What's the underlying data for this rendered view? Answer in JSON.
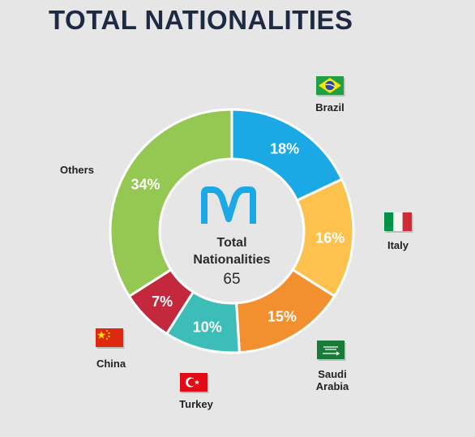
{
  "title": "TOTAL NATIONALITIES",
  "center": {
    "line1": "Total",
    "line2": "Nationalities",
    "value": "65"
  },
  "colors": {
    "brazil": "#1ba9e6",
    "italy": "#fdc24e",
    "saudi": "#f2902f",
    "turkey": "#3cbdb7",
    "china": "#c3283c",
    "others": "#95c753",
    "logo": "#1ba9e6"
  },
  "chart_data": {
    "type": "pie",
    "categories": [
      "Brazil",
      "Italy",
      "Saudi Arabia",
      "Turkey",
      "China",
      "Others"
    ],
    "values": [
      18,
      16,
      15,
      10,
      7,
      34
    ],
    "value_labels": [
      "18%",
      "16%",
      "15%",
      "10%",
      "7%",
      "34%"
    ],
    "label_lines": [
      [
        "Brazil"
      ],
      [
        "Italy"
      ],
      [
        "Saudi",
        "Arabia"
      ],
      [
        "Turkey"
      ],
      [
        "China"
      ],
      [
        "Others"
      ]
    ],
    "icons": [
      "brazil-flag-icon",
      "italy-flag-icon",
      "saudi-flag-icon",
      "turkey-flag-icon",
      "china-flag-icon",
      ""
    ],
    "unit": "%",
    "donut": true
  }
}
